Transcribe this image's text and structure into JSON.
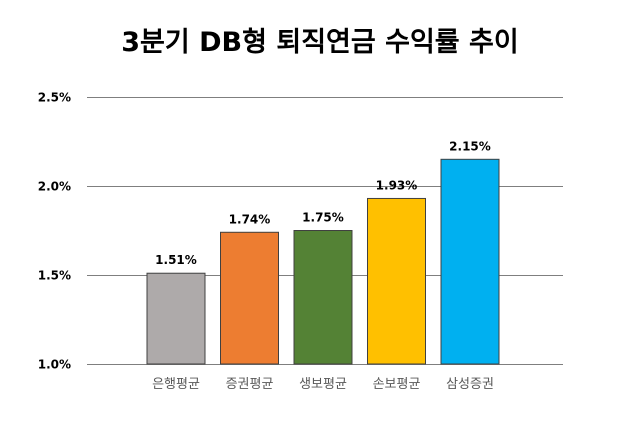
{
  "chart_data": {
    "type": "bar",
    "title": "3분기 DB형 퇴직연금 수익률 추이",
    "categories": [
      "은행평균",
      "증권평균",
      "생보평균",
      "손보평균",
      "삼성증권"
    ],
    "values": [
      1.51,
      1.74,
      1.75,
      1.93,
      2.15
    ],
    "data_labels": [
      "1.51%",
      "1.74%",
      "1.75%",
      "1.93%",
      "2.15%"
    ],
    "colors": [
      "#AEAAAA",
      "#ED7D31",
      "#548235",
      "#FFC000",
      "#00B0F0"
    ],
    "ylim": [
      1.0,
      2.5
    ],
    "yticks": [
      1.0,
      1.5,
      2.0,
      2.5
    ],
    "ytick_labels": [
      "1.0%",
      "1.5%",
      "2.0%",
      "2.5%"
    ],
    "grid": true,
    "legend": "none"
  }
}
